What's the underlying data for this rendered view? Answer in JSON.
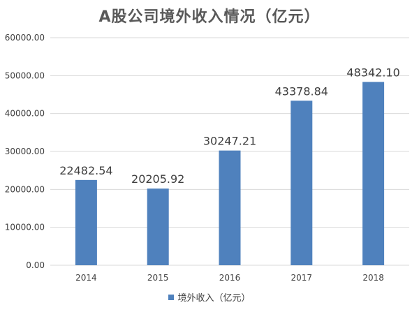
{
  "chart_data": {
    "type": "bar",
    "title": "A股公司境外收入情况（亿元）",
    "categories": [
      "2014",
      "2015",
      "2016",
      "2017",
      "2018"
    ],
    "series": [
      {
        "name": "境外收入（亿元）",
        "values": [
          22482.54,
          20205.92,
          30247.21,
          43378.84,
          48342.1
        ]
      }
    ],
    "data_labels": [
      "22482.54",
      "20205.92",
      "30247.21",
      "43378.84",
      "48342.10"
    ],
    "y_tick_labels": [
      "0.00",
      "10000.00",
      "20000.00",
      "30000.00",
      "40000.00",
      "50000.00",
      "60000.00"
    ],
    "ylim": [
      0,
      60000
    ],
    "y_step": 10000,
    "grid": true,
    "legend_position": "bottom",
    "colors": {
      "bar": "#4f81bd",
      "grid": "#d9d9d9",
      "text": "#404040"
    }
  }
}
